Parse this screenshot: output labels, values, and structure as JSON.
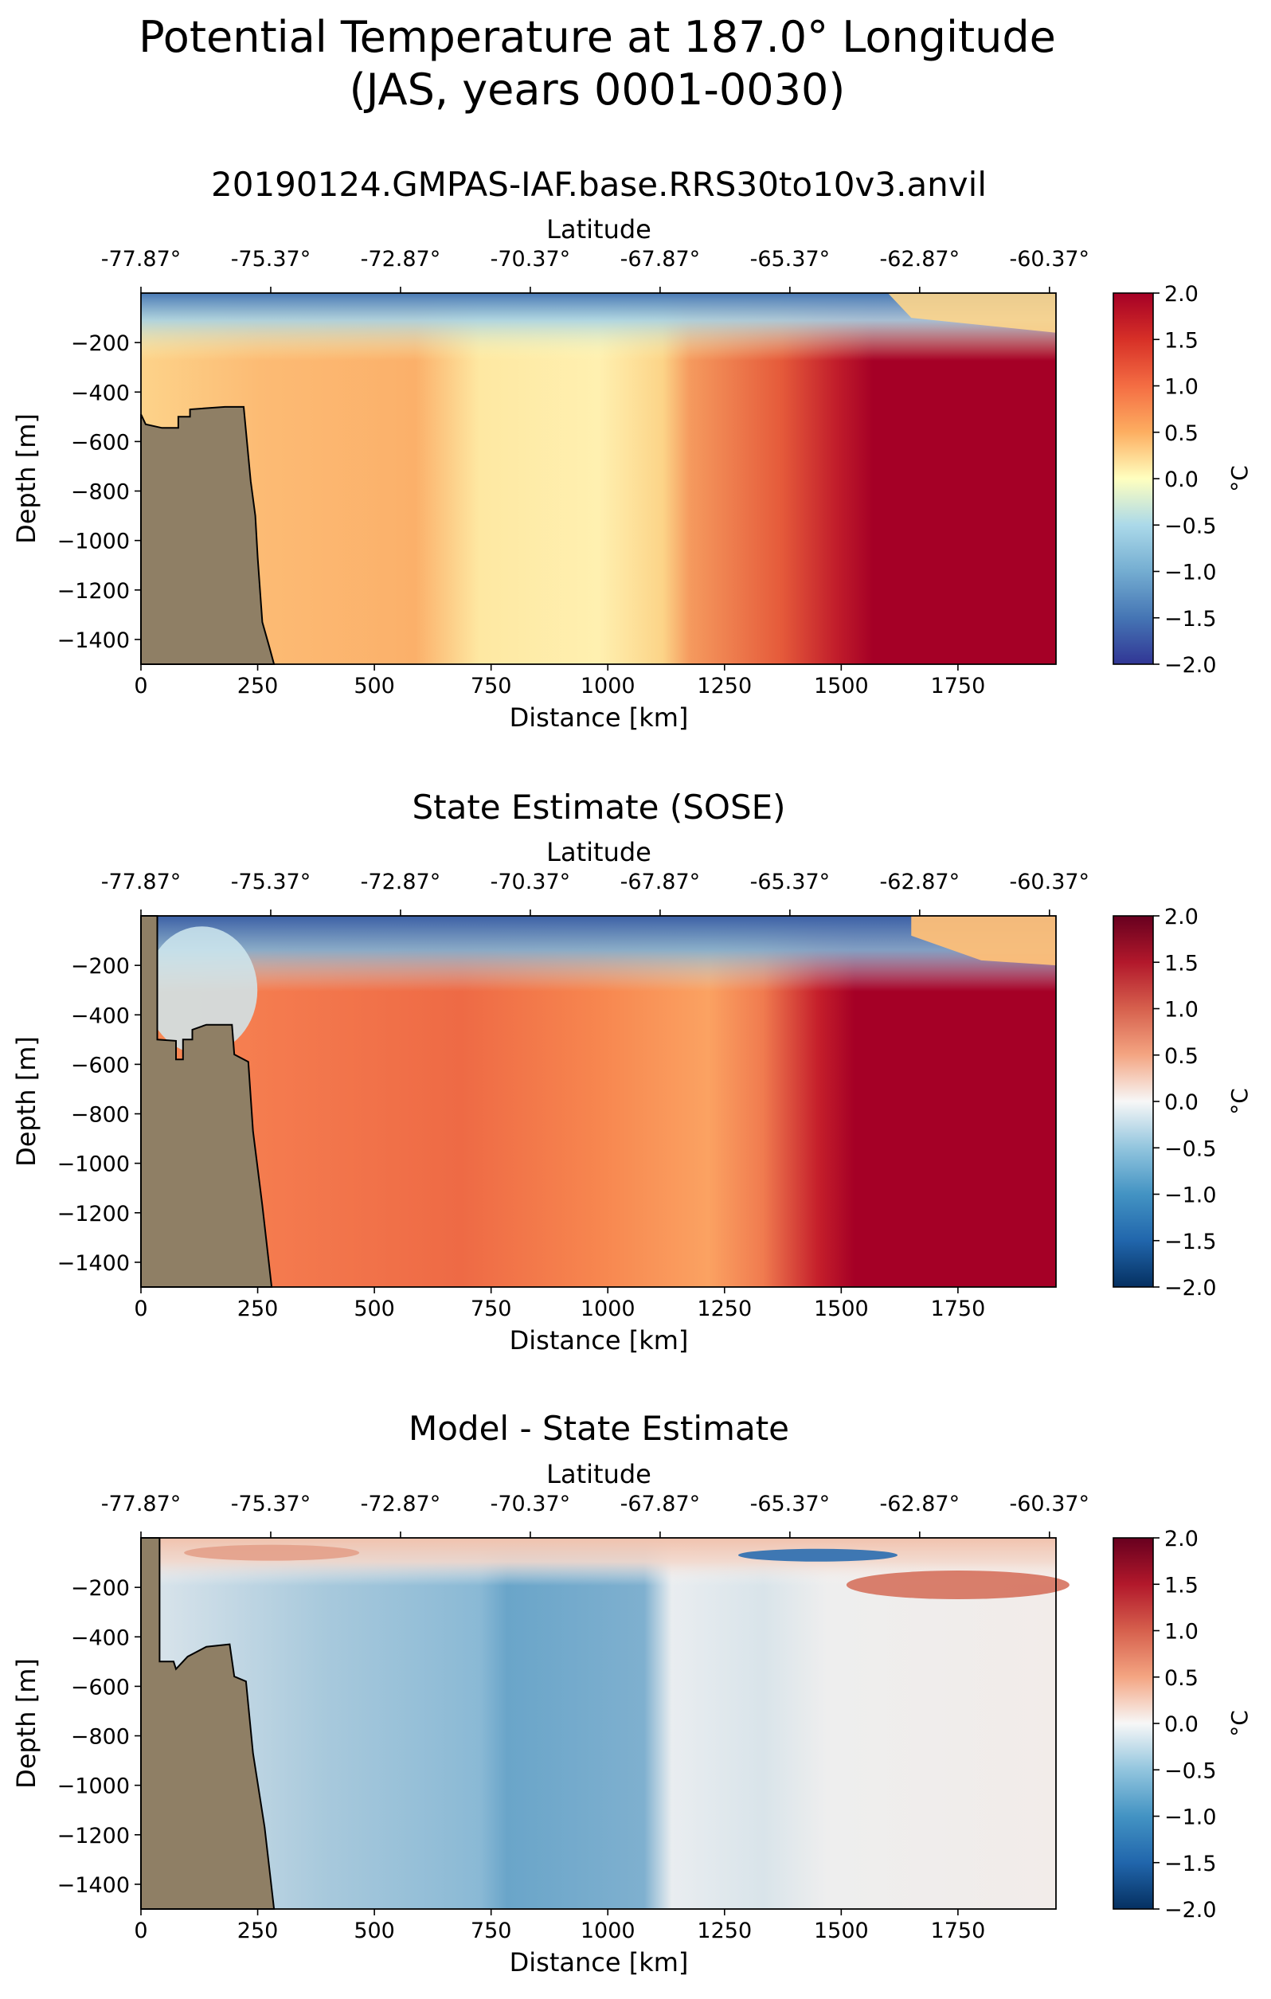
{
  "suptitle": "Potential Temperature at 187.0° Longitude\n(JAS, years 0001-0030)",
  "shared": {
    "xlabel": "Distance [km]",
    "ylabel": "Depth [m]",
    "top_axis_label": "Latitude",
    "colorbar_label": "°C",
    "x_ticks": [
      0,
      250,
      500,
      750,
      1000,
      1250,
      1500,
      1750
    ],
    "x_range": [
      0,
      1960
    ],
    "y_ticks": [
      -200,
      -400,
      -600,
      -800,
      -1000,
      -1200,
      -1400
    ],
    "y_range": [
      -1500,
      0
    ],
    "lat_ticks": [
      "-77.87°",
      "-75.37°",
      "-72.87°",
      "-70.37°",
      "-67.87°",
      "-65.37°",
      "-62.87°",
      "-60.37°"
    ],
    "lat_tick_positions_km": [
      0,
      278,
      556,
      834,
      1112,
      1390,
      1668,
      1946
    ],
    "cbar_ticks": [
      "2.0",
      "1.5",
      "1.0",
      "0.5",
      "0.0",
      "−0.5",
      "−1.0",
      "−1.5",
      "−2.0"
    ],
    "cbar_range": [
      -2.0,
      2.0
    ],
    "land_color": "#8f7f65"
  },
  "chart_data": [
    {
      "type": "heatmap",
      "title": "20190124.GMPAS-IAF.base.RRS30to10v3.anvil",
      "colormap": "RdYlBu_r",
      "xlabel": "Distance [km]",
      "ylabel": "Depth [m]",
      "xlim": [
        0,
        1960
      ],
      "ylim": [
        -1500,
        0
      ],
      "clim": [
        -2.0,
        2.0
      ],
      "description_points": [
        {
          "x": 100,
          "y": -100,
          "value": -1.4
        },
        {
          "x": 500,
          "y": -800,
          "value": 0.7
        },
        {
          "x": 850,
          "y": -1200,
          "value": 0.2
        },
        {
          "x": 1200,
          "y": -800,
          "value": 1.1
        },
        {
          "x": 1800,
          "y": -800,
          "value": 2.0
        },
        {
          "x": 1850,
          "y": -100,
          "value": 0.4
        }
      ],
      "bathymetry_km_depth": [
        [
          0,
          -490
        ],
        [
          10,
          -530
        ],
        [
          45,
          -545
        ],
        [
          80,
          -545
        ],
        [
          80,
          -500
        ],
        [
          105,
          -500
        ],
        [
          105,
          -470
        ],
        [
          180,
          -460
        ],
        [
          220,
          -460
        ],
        [
          235,
          -760
        ],
        [
          245,
          -900
        ],
        [
          250,
          -1070
        ],
        [
          260,
          -1330
        ],
        [
          275,
          -1430
        ],
        [
          285,
          -1500
        ]
      ]
    },
    {
      "type": "heatmap",
      "title": "State Estimate (SOSE)",
      "colormap": "RdYlBu_r",
      "xlabel": "Distance [km]",
      "ylabel": "Depth [m]",
      "xlim": [
        0,
        1960
      ],
      "ylim": [
        -1500,
        0
      ],
      "clim": [
        -2.0,
        2.0
      ],
      "description_points": [
        {
          "x": 100,
          "y": -300,
          "value": -0.6
        },
        {
          "x": 500,
          "y": -800,
          "value": 1.3
        },
        {
          "x": 1000,
          "y": -1300,
          "value": 0.8
        },
        {
          "x": 1700,
          "y": -800,
          "value": 2.0
        },
        {
          "x": 1850,
          "y": -100,
          "value": 0.6
        }
      ],
      "bathymetry_km_depth": [
        [
          0,
          0
        ],
        [
          35,
          0
        ],
        [
          35,
          -500
        ],
        [
          75,
          -505
        ],
        [
          75,
          -580
        ],
        [
          90,
          -580
        ],
        [
          90,
          -500
        ],
        [
          110,
          -500
        ],
        [
          110,
          -460
        ],
        [
          140,
          -440
        ],
        [
          195,
          -440
        ],
        [
          200,
          -560
        ],
        [
          230,
          -590
        ],
        [
          240,
          -870
        ],
        [
          260,
          -1170
        ],
        [
          280,
          -1500
        ]
      ]
    },
    {
      "type": "heatmap",
      "title": "Model - State Estimate",
      "colormap": "RdBu_r",
      "xlabel": "Distance [km]",
      "ylabel": "Depth [m]",
      "xlim": [
        0,
        1960
      ],
      "ylim": [
        -1500,
        0
      ],
      "clim": [
        -2.0,
        2.0
      ],
      "description_points": [
        {
          "x": 300,
          "y": -60,
          "value": 0.6
        },
        {
          "x": 450,
          "y": -500,
          "value": -0.6
        },
        {
          "x": 850,
          "y": -500,
          "value": -1.0
        },
        {
          "x": 1450,
          "y": -60,
          "value": -1.2
        },
        {
          "x": 1750,
          "y": -200,
          "value": 0.9
        },
        {
          "x": 1500,
          "y": -900,
          "value": -0.1
        }
      ],
      "bathymetry_km_depth": [
        [
          0,
          0
        ],
        [
          40,
          0
        ],
        [
          40,
          -500
        ],
        [
          70,
          -500
        ],
        [
          75,
          -530
        ],
        [
          100,
          -480
        ],
        [
          140,
          -440
        ],
        [
          190,
          -430
        ],
        [
          200,
          -560
        ],
        [
          225,
          -580
        ],
        [
          240,
          -870
        ],
        [
          265,
          -1170
        ],
        [
          285,
          -1500
        ]
      ]
    }
  ]
}
